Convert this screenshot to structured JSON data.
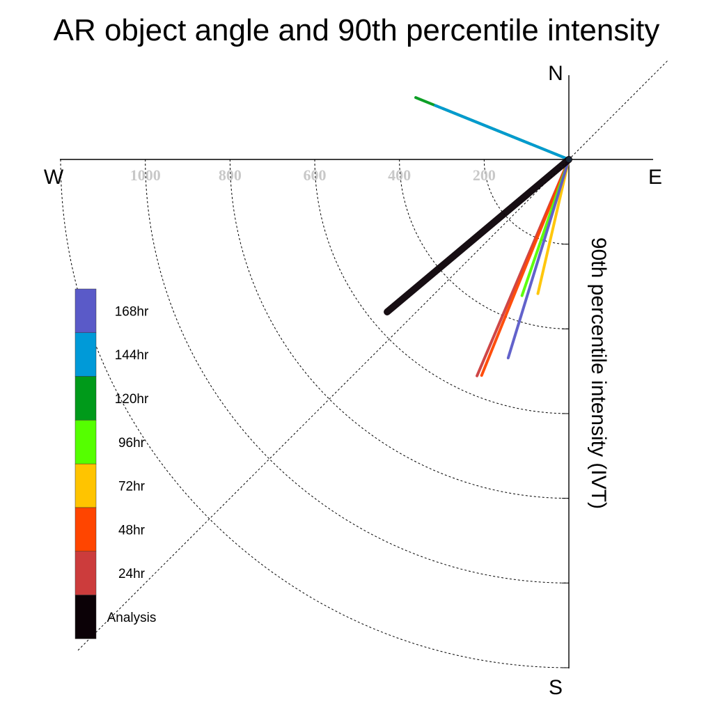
{
  "chart_data": {
    "type": "polar-vector",
    "title": "AR object angle and 90th percentile intensity",
    "radial_label": "90th percentile intensity (IVT)",
    "compass": {
      "north": "N",
      "south": "S",
      "east": "E",
      "west": "W"
    },
    "radial_ticks": [
      200,
      400,
      600,
      800,
      1000
    ],
    "radial_max": 1200,
    "grid": true,
    "legend_position": "left",
    "series": [
      {
        "name": "Analysis",
        "color": "#0b0106",
        "angle_deg": 230,
        "intensity": 560
      },
      {
        "name": "24hr",
        "color": "#cc3c3c",
        "angle_deg": 203,
        "intensity": 555
      },
      {
        "name": "48hr",
        "color": "#ff4500",
        "angle_deg": 202,
        "intensity": 550
      },
      {
        "name": "72hr",
        "color": "#ffc400",
        "angle_deg": 193,
        "intensity": 325
      },
      {
        "name": "96hr",
        "color": "#55ff00",
        "angle_deg": 199,
        "intensity": 340
      },
      {
        "name": "120hr",
        "color": "#009a1a",
        "angle_deg": 292,
        "intensity": 390
      },
      {
        "name": "144hr",
        "color": "#009ad8",
        "angle_deg": 292,
        "intensity": 340
      },
      {
        "name": "168hr",
        "color": "#5a5ac8",
        "angle_deg": 197,
        "intensity": 490
      }
    ],
    "legend_order": [
      "168hr",
      "144hr",
      "120hr",
      "96hr",
      "72hr",
      "48hr",
      "24hr",
      "Analysis"
    ]
  }
}
